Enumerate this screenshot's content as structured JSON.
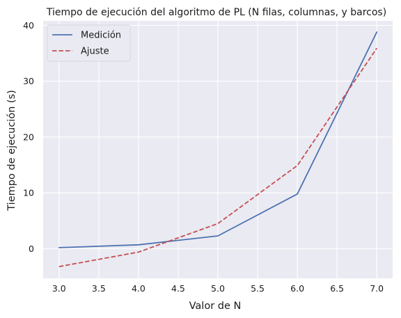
{
  "chart_data": {
    "type": "line",
    "title": "Tiempo de ejecución del algoritmo de PL (N filas, columnas, y barcos)",
    "xlabel": "Valor de N",
    "ylabel": "Tiempo de ejecución (s)",
    "xlim": [
      2.8,
      7.2
    ],
    "ylim": [
      -5.3,
      40.8
    ],
    "xticks": [
      3.0,
      3.5,
      4.0,
      4.5,
      5.0,
      5.5,
      6.0,
      6.5,
      7.0
    ],
    "xtick_labels": [
      "3.0",
      "3.5",
      "4.0",
      "4.5",
      "5.0",
      "5.5",
      "6.0",
      "6.5",
      "7.0"
    ],
    "yticks": [
      0,
      10,
      20,
      30,
      40
    ],
    "ytick_labels": [
      "0",
      "10",
      "20",
      "30",
      "40"
    ],
    "grid": true,
    "legend_position": "top-left",
    "background": "#eaeaf2",
    "series": [
      {
        "name": "Medición",
        "color": "#4c72b0",
        "style": "solid",
        "x": [
          3,
          4,
          5,
          6,
          7
        ],
        "y": [
          0.2,
          0.7,
          2.3,
          9.8,
          38.8
        ]
      },
      {
        "name": "Ajuste",
        "color": "#c44e52",
        "style": "dashed",
        "x": [
          3,
          4,
          5,
          6,
          7
        ],
        "y": [
          -3.2,
          -0.6,
          4.5,
          14.9,
          35.9
        ]
      }
    ]
  }
}
